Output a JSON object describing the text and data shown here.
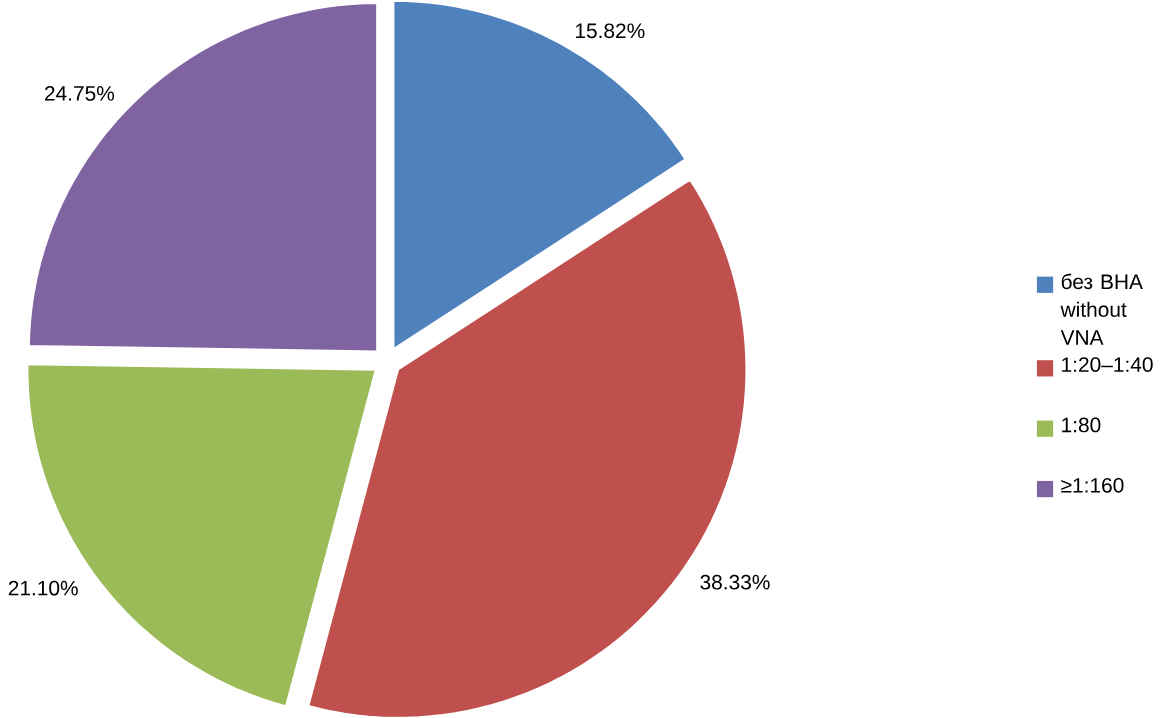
{
  "chart_data": {
    "type": "pie",
    "categories": [
      "без ВНА without VNA",
      "1:20–1:40",
      "1:80",
      "≥1:160"
    ],
    "values": [
      15.82,
      38.33,
      21.1,
      24.75
    ],
    "value_labels": [
      "15.82%",
      "38.33%",
      "21.10%",
      "24.75%"
    ],
    "colors": [
      "#4f81bd",
      "#c0504d",
      "#9bbb59",
      "#8064a2"
    ],
    "legend": "right"
  }
}
